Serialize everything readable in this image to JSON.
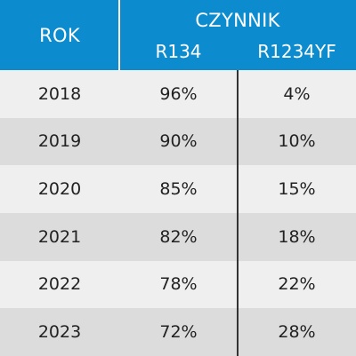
{
  "header": {
    "rok": "ROK",
    "czynnik": "CZYNNIK",
    "col1": "R134",
    "col2": "R1234YF"
  },
  "rows": [
    {
      "year": "2018",
      "r134": "96%",
      "r1234yf": "4%"
    },
    {
      "year": "2019",
      "r134": "90%",
      "r1234yf": "10%"
    },
    {
      "year": "2020",
      "r134": "85%",
      "r1234yf": "15%"
    },
    {
      "year": "2021",
      "r134": "82%",
      "r1234yf": "18%"
    },
    {
      "year": "2022",
      "r134": "78%",
      "r1234yf": "22%"
    },
    {
      "year": "2023",
      "r134": "72%",
      "r1234yf": "28%"
    }
  ],
  "colors": {
    "header_bg": "#0c8ccf",
    "row_light": "#efefef",
    "row_dark": "#dcdcdc"
  }
}
